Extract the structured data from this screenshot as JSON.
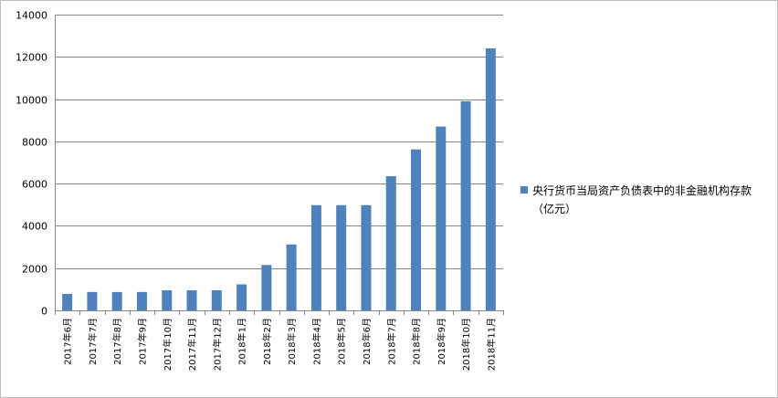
{
  "colors": {
    "bar": "#4f81bd",
    "grid": "#868686",
    "axis": "#868686"
  },
  "chart_data": {
    "type": "bar",
    "title": "",
    "xlabel": "",
    "ylabel": "",
    "ylim": [
      0,
      14000
    ],
    "yticks": [
      0,
      2000,
      4000,
      6000,
      8000,
      10000,
      12000,
      14000
    ],
    "grid": true,
    "legend_position": "right",
    "categories": [
      "2017年6月",
      "2017年7月",
      "2017年8月",
      "2017年9月",
      "2017年10月",
      "2017年11月",
      "2017年12月",
      "2018年1月",
      "2018年2月",
      "2018年3月",
      "2018年4月",
      "2018年5月",
      "2018年6月",
      "2018年7月",
      "2018年8月",
      "2018年9月",
      "2018年10月",
      "2018年11月"
    ],
    "series": [
      {
        "name": "央行货币当局资产负债表中的非金融机构存款（亿元）",
        "values": [
          780,
          870,
          870,
          870,
          950,
          950,
          950,
          1230,
          2150,
          3120,
          4980,
          4980,
          4980,
          6350,
          7620,
          8700,
          9900,
          12400
        ]
      }
    ]
  }
}
